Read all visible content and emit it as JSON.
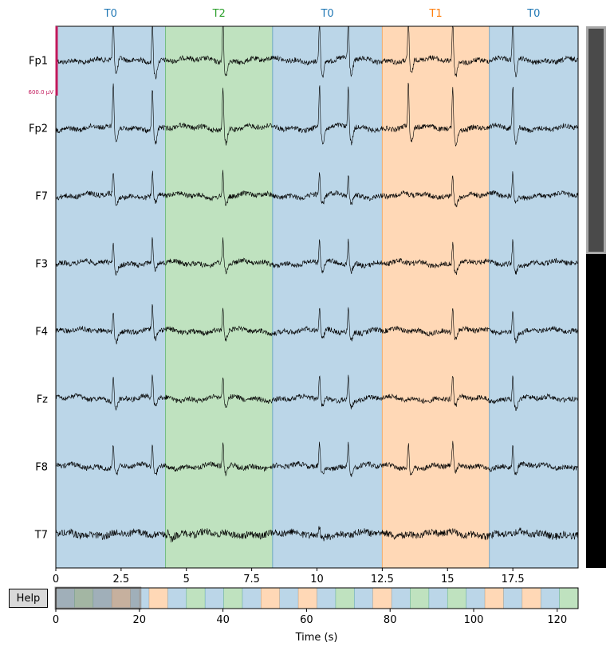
{
  "help_button": {
    "label": "Help"
  },
  "scalebar": {
    "label": "600.0 µV",
    "color": "#c2185b"
  },
  "channels": [
    "Fp1",
    "Fp2",
    "F7",
    "F3",
    "F4",
    "Fz",
    "F8",
    "T7"
  ],
  "annotations": {
    "colors": {
      "T0": "#1f77b4",
      "T1": "#ff7f0e",
      "T2": "#2ca02c"
    },
    "window_segments": [
      {
        "label": "T0",
        "start": 0.0,
        "end": 4.2
      },
      {
        "label": "T2",
        "start": 4.2,
        "end": 8.3
      },
      {
        "label": "T0",
        "start": 8.3,
        "end": 12.5
      },
      {
        "label": "T1",
        "start": 12.5,
        "end": 16.6
      },
      {
        "label": "T0",
        "start": 16.6,
        "end": 20.0
      }
    ],
    "overview_sequence": [
      "T0",
      "T2",
      "T0",
      "T1",
      "T0",
      "T1",
      "T0",
      "T2",
      "T0",
      "T2",
      "T0",
      "T1",
      "T0",
      "T1",
      "T0",
      "T2",
      "T0",
      "T1",
      "T0",
      "T2",
      "T0",
      "T2",
      "T0",
      "T1",
      "T0",
      "T1",
      "T0",
      "T2"
    ]
  },
  "main_axis": {
    "xlim": [
      0,
      20
    ],
    "ticks": [
      "0",
      "2.5",
      "5",
      "7.5",
      "10",
      "12.5",
      "15",
      "17.5"
    ],
    "tick_values": [
      0,
      2.5,
      5,
      7.5,
      10,
      12.5,
      15,
      17.5
    ]
  },
  "overview_axis": {
    "xlim": [
      0,
      125
    ],
    "ticks": [
      "0",
      "20",
      "40",
      "60",
      "80",
      "100",
      "120"
    ],
    "tick_values": [
      0,
      20,
      40,
      60,
      80,
      100,
      120
    ],
    "xlabel": "Time (s)",
    "view_window": [
      0,
      20
    ]
  },
  "vertical_scroll": {
    "visible_fraction": 0.42
  },
  "spike_times": {
    "Fp1": [
      2.2,
      3.7,
      6.4,
      10.1,
      11.2,
      13.5,
      15.2,
      17.5
    ],
    "Fp2": [
      2.2,
      3.7,
      6.4,
      10.1,
      11.2,
      13.5,
      15.2,
      17.5
    ],
    "F7": [
      2.2,
      3.7,
      6.4,
      10.1,
      11.2,
      15.2,
      17.5
    ],
    "F3": [
      2.2,
      3.7,
      6.4,
      10.1,
      11.2,
      15.2,
      17.5
    ],
    "F4": [
      2.2,
      3.7,
      6.4,
      10.1,
      11.2,
      15.2,
      17.5
    ],
    "Fz": [
      2.2,
      3.7,
      6.4,
      10.1,
      11.2,
      15.2,
      17.5
    ],
    "F8": [
      2.2,
      3.7,
      6.4,
      10.1,
      11.2,
      13.5,
      15.2,
      17.5
    ],
    "T7": [
      4.3,
      10.1
    ]
  }
}
